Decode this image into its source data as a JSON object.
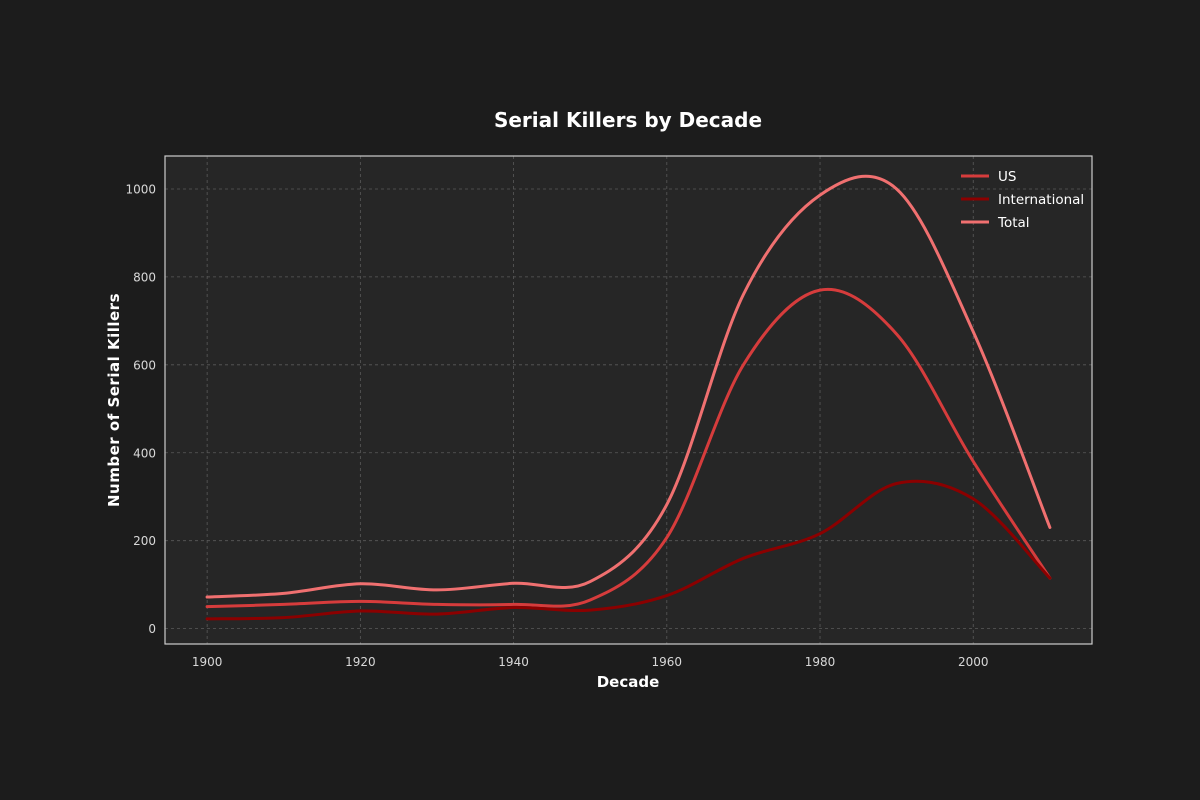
{
  "chart_data": {
    "type": "line",
    "title": "Serial Killers by Decade",
    "xlabel": "Decade",
    "ylabel": "Number of Serial Killers",
    "x": [
      1900,
      1910,
      1920,
      1930,
      1940,
      1950,
      1960,
      1970,
      1980,
      1990,
      2000,
      2010
    ],
    "series": [
      {
        "name": "US",
        "color": "#d63c3c",
        "values": [
          50,
          55,
          62,
          55,
          55,
          65,
          207,
          600,
          770,
          670,
          380,
          115
        ]
      },
      {
        "name": "International",
        "color": "#8b0000",
        "values": [
          22,
          25,
          40,
          33,
          48,
          42,
          75,
          160,
          216,
          330,
          295,
          115
        ]
      },
      {
        "name": "Total",
        "color": "#f07070",
        "values": [
          72,
          80,
          102,
          88,
          103,
          107,
          282,
          760,
          986,
          1000,
          675,
          230
        ]
      }
    ],
    "xticks": [
      1900,
      1920,
      1940,
      1960,
      1980,
      2000
    ],
    "yticks": [
      0,
      200,
      400,
      600,
      800,
      1000
    ],
    "xlim": [
      1894.5,
      2015.5
    ],
    "ylim": [
      -35,
      1075
    ],
    "grid": true,
    "legend_position": "upper right"
  },
  "colors": {
    "background": "#1c1c1c",
    "plot_background": "#262626",
    "axes_border": "#cccccc",
    "grid": "#5a5a5a",
    "text": "#ffffff"
  }
}
